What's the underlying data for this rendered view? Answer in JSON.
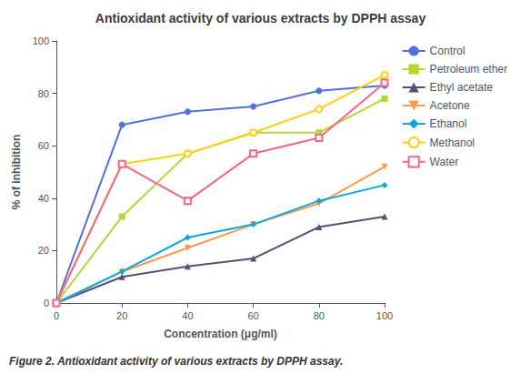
{
  "chart_data": {
    "type": "line",
    "title": "Antioxidant activity of various extracts by DPPH assay",
    "xlabel": "Concentration (μg/ml)",
    "ylabel": "% of inhibition",
    "x": [
      0,
      20,
      40,
      60,
      80,
      100
    ],
    "series": [
      {
        "name": "Control",
        "values": [
          0,
          68,
          73,
          75,
          81,
          83
        ],
        "marker": "circle"
      },
      {
        "name": "Petroleum ether",
        "values": [
          0,
          33,
          57,
          65,
          65,
          78
        ],
        "marker": "square"
      },
      {
        "name": "Ethyl acetate",
        "values": [
          0,
          10,
          14,
          17,
          29,
          33
        ],
        "marker": "triangle"
      },
      {
        "name": "Acetone",
        "values": [
          0,
          12,
          21,
          30,
          38,
          52
        ],
        "marker": "triangle_down"
      },
      {
        "name": "Ethanol",
        "values": [
          0,
          12,
          25,
          30,
          39,
          45
        ],
        "marker": "diamond"
      },
      {
        "name": "Methanol",
        "values": [
          0,
          53,
          57,
          65,
          74,
          87
        ],
        "marker": "open_circle"
      },
      {
        "name": "Water",
        "values": [
          0,
          53,
          39,
          57,
          63,
          84
        ],
        "marker": "open_square"
      }
    ],
    "xlim": [
      0,
      100
    ],
    "ylim": [
      0,
      100
    ],
    "xticks": [
      0,
      20,
      40,
      60,
      80,
      100
    ],
    "yticks": [
      0,
      20,
      40,
      60,
      80,
      100
    ],
    "grid": false,
    "legend": "right",
    "annotations": [
      "Figure 2. Antioxidant activity of various extracts by DPPH assay."
    ]
  }
}
